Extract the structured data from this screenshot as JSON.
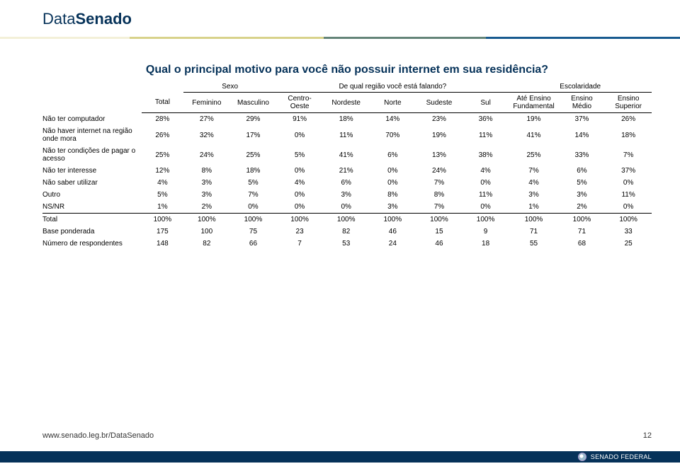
{
  "brand_prefix": "Data",
  "brand_bold": "Senado",
  "stripe_segments": [
    {
      "color": "#f3f0d8",
      "flex": 2
    },
    {
      "color": "#d8d28a",
      "flex": 3
    },
    {
      "color": "#648478",
      "flex": 2.5
    },
    {
      "color": "#175a8f",
      "flex": 3
    }
  ],
  "title": "Qual o principal motivo para você não possuir internet em sua residência?",
  "header_groups": [
    {
      "label": "Sexo",
      "span": 2
    },
    {
      "label": "De qual região você está falando?",
      "span": 5
    },
    {
      "label": "Escolaridade",
      "span": 3
    }
  ],
  "total_label": "Total",
  "sub_columns": [
    "Feminino",
    "Masculino",
    "Centro-Oeste",
    "Nordeste",
    "Norte",
    "Sudeste",
    "Sul",
    "Até Ensino Fundamental",
    "Ensino Médio",
    "Ensino Superior"
  ],
  "rows": [
    {
      "label": "Não ter computador",
      "cells": [
        "28%",
        "27%",
        "29%",
        "91%",
        "18%",
        "14%",
        "23%",
        "36%",
        "19%",
        "37%",
        "26%"
      ]
    },
    {
      "label": "Não haver internet na região onde mora",
      "cells": [
        "26%",
        "32%",
        "17%",
        "0%",
        "11%",
        "70%",
        "19%",
        "11%",
        "41%",
        "14%",
        "18%"
      ]
    },
    {
      "label": "Não ter condições de pagar o acesso",
      "cells": [
        "25%",
        "24%",
        "25%",
        "5%",
        "41%",
        "6%",
        "13%",
        "38%",
        "25%",
        "33%",
        "7%"
      ]
    },
    {
      "label": "Não ter interesse",
      "cells": [
        "12%",
        "8%",
        "18%",
        "0%",
        "21%",
        "0%",
        "24%",
        "4%",
        "7%",
        "6%",
        "37%"
      ]
    },
    {
      "label": "Não saber utilizar",
      "cells": [
        "4%",
        "3%",
        "5%",
        "4%",
        "6%",
        "0%",
        "7%",
        "0%",
        "4%",
        "5%",
        "0%"
      ]
    },
    {
      "label": "Outro",
      "cells": [
        "5%",
        "3%",
        "7%",
        "0%",
        "3%",
        "8%",
        "8%",
        "11%",
        "3%",
        "3%",
        "11%"
      ]
    },
    {
      "label": "NS/NR",
      "cells": [
        "1%",
        "2%",
        "0%",
        "0%",
        "0%",
        "3%",
        "7%",
        "0%",
        "1%",
        "2%",
        "0%"
      ]
    },
    {
      "label": "Total",
      "cells": [
        "100%",
        "100%",
        "100%",
        "100%",
        "100%",
        "100%",
        "100%",
        "100%",
        "100%",
        "100%",
        "100%"
      ],
      "total": true
    },
    {
      "label": "Base ponderada",
      "cells": [
        "175",
        "100",
        "75",
        "23",
        "82",
        "46",
        "15",
        "9",
        "71",
        "71",
        "33"
      ]
    },
    {
      "label": "Número de respondentes",
      "cells": [
        "148",
        "82",
        "66",
        "7",
        "53",
        "24",
        "46",
        "18",
        "55",
        "68",
        "25"
      ]
    }
  ],
  "footer_url": "www.senado.leg.br/DataSenado",
  "page_number": "12",
  "senado_label": "SENADO FEDERAL",
  "colors": {
    "brand": "#063259",
    "text": "#000000",
    "footer": "#333333",
    "bar": "#063259"
  }
}
